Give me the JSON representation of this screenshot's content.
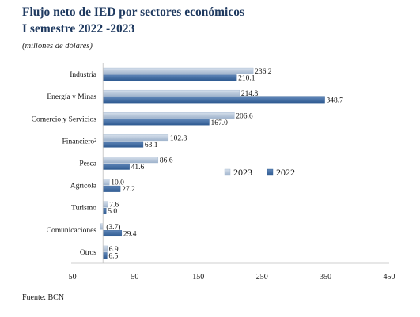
{
  "chart_data": {
    "type": "bar",
    "orientation": "horizontal",
    "title": "Flujo neto de IED por sectores económicos",
    "subtitle": "I semestre 2022 -2023",
    "unit_note": "(millones de dólares)",
    "source": "Fuente: BCN",
    "categories": [
      "Industria",
      "Energía y Minas",
      "Comercio y Servicios",
      "Financiero²",
      "Pesca",
      "Agrícola",
      "Turismo",
      "Comunicaciones",
      "Otros"
    ],
    "series": [
      {
        "name": "2023",
        "color": "#9fb3cc",
        "values": [
          236.2,
          214.8,
          206.6,
          102.8,
          86.6,
          10.0,
          7.6,
          -3.7,
          6.9
        ],
        "labels": [
          "236.2",
          "214.8",
          "206.6",
          "102.8",
          "86.6",
          "10.0",
          "7.6",
          "(3.7)",
          "6.9"
        ]
      },
      {
        "name": "2022",
        "color": "#2e5a91",
        "values": [
          210.1,
          348.7,
          167.0,
          63.1,
          41.6,
          27.2,
          5.0,
          29.4,
          6.5
        ],
        "labels": [
          "210.1",
          "348.7",
          "167.0",
          "63.1",
          "41.6",
          "27.2",
          "5.0",
          "29.4",
          "6.5"
        ]
      }
    ],
    "xlim": [
      -50,
      450
    ],
    "xticks": [
      "-50",
      "50",
      "150",
      "250",
      "350",
      "450"
    ],
    "grid": false,
    "legend": "inside-right"
  }
}
